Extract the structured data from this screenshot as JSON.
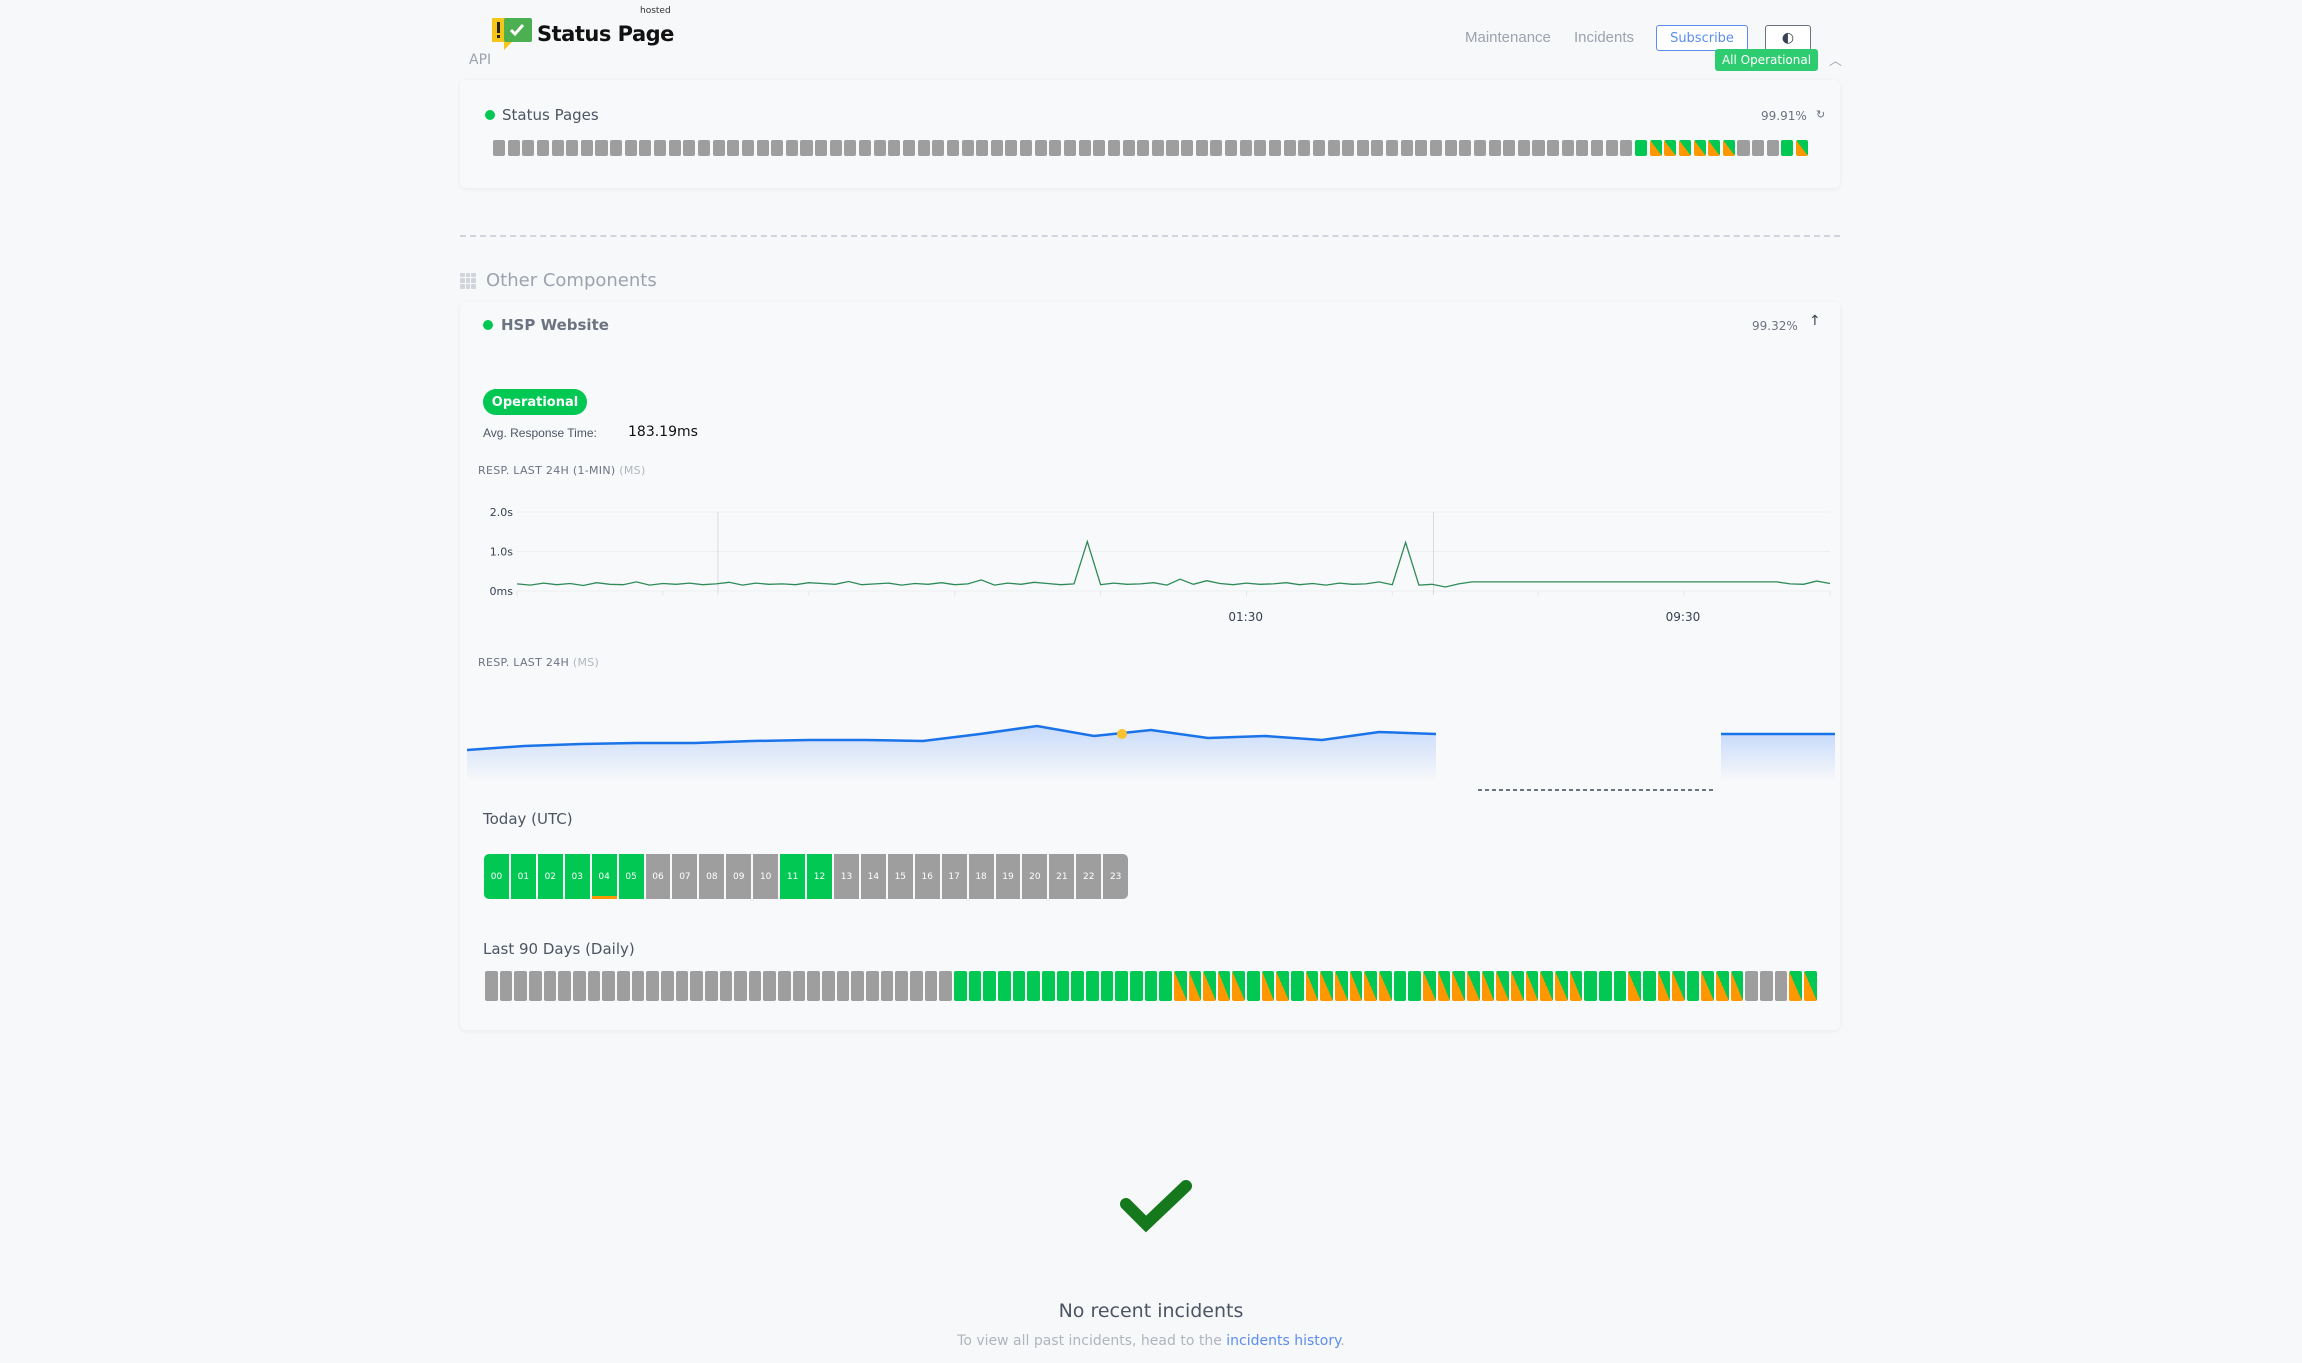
{
  "header": {
    "logo_text": "Status Page",
    "logo_badge": "hosted",
    "api_label": "API",
    "nav": [
      "Maintenance",
      "Incidents"
    ],
    "subscribe_label": "Subscribe",
    "theme_icon": "half-circle-contrast-icon",
    "overall_status": "All Operational",
    "collapse_icon": "chevron-up-icon"
  },
  "colors": {
    "operational": "#00c853",
    "partial": "#ff9800",
    "no_data": "#9e9e9e",
    "accent": "#5b8def"
  },
  "status_pages": {
    "name": "Status Pages",
    "uptime": "99.91%",
    "days": "xxxxxxxxxxxxxxxxxxxxxxxxxxxxxxxxxxxxxxxxxxxxxxxxxxxxxxxxxxxxxxxxxxxxxxxxxxxxxxossssssxxxos"
  },
  "other_components": {
    "heading": "Other Components",
    "component": {
      "name": "HSP Website",
      "uptime": "99.32%",
      "status": "Operational",
      "avg_label": "Avg. Response Time:",
      "avg_value": "183.19ms",
      "chart1_label": "RESP. LAST 24H (1-MIN)",
      "chart1_unit": "(MS)",
      "chart2_label": "RESP. LAST 24H",
      "chart2_unit": "(MS)",
      "today_label": "Today (UTC)",
      "hours": [
        {
          "h": "00",
          "s": "o"
        },
        {
          "h": "01",
          "s": "o"
        },
        {
          "h": "02",
          "s": "o"
        },
        {
          "h": "03",
          "s": "o"
        },
        {
          "h": "04",
          "s": "o",
          "partial": true
        },
        {
          "h": "05",
          "s": "o"
        },
        {
          "h": "06",
          "s": "x"
        },
        {
          "h": "07",
          "s": "x"
        },
        {
          "h": "08",
          "s": "x"
        },
        {
          "h": "09",
          "s": "x"
        },
        {
          "h": "10",
          "s": "x"
        },
        {
          "h": "11",
          "s": "o"
        },
        {
          "h": "12",
          "s": "o"
        },
        {
          "h": "13",
          "s": "x"
        },
        {
          "h": "14",
          "s": "x"
        },
        {
          "h": "15",
          "s": "x"
        },
        {
          "h": "16",
          "s": "x"
        },
        {
          "h": "17",
          "s": "x"
        },
        {
          "h": "18",
          "s": "x"
        },
        {
          "h": "19",
          "s": "x"
        },
        {
          "h": "20",
          "s": "x"
        },
        {
          "h": "21",
          "s": "x"
        },
        {
          "h": "22",
          "s": "x"
        },
        {
          "h": "23",
          "s": "x"
        }
      ],
      "days_label": "Last 90 Days (Daily)",
      "days": "xxxxxxxxxxxxxxxxxxxxxxxxxxxxxxxxooooooooooooooosssssossossssssoosssssssssssooosossosssxxxss"
    }
  },
  "chart_data": [
    {
      "type": "line",
      "title": "RESP. LAST 24H (1-MIN) (MS)",
      "ylim": [
        0,
        2000
      ],
      "yticks": [
        "0ms",
        "1.0s",
        "2.0s"
      ],
      "xticks": [
        "01:30",
        "09:30"
      ],
      "values": [
        180,
        150,
        200,
        160,
        190,
        140,
        210,
        170,
        160,
        230,
        150,
        190,
        170,
        200,
        160,
        180,
        220,
        150,
        200,
        170,
        180,
        160,
        210,
        190,
        170,
        240,
        160,
        180,
        200,
        150,
        190,
        170,
        210,
        160,
        180,
        280,
        150,
        200,
        170,
        220,
        190,
        160,
        180,
        1250,
        160,
        200,
        170,
        180,
        210,
        150,
        300,
        170,
        260,
        190,
        160,
        200,
        170,
        180,
        210,
        160,
        190,
        150,
        200,
        170,
        180,
        230,
        160,
        1230,
        150,
        170,
        100,
        180,
        230,
        230,
        230,
        230,
        230,
        230,
        230,
        230,
        230,
        230,
        230,
        230,
        230,
        230,
        230,
        230,
        230,
        230,
        230,
        230,
        230,
        230,
        230,
        230,
        180,
        170,
        250,
        190
      ],
      "line_color": "#2e8b57"
    },
    {
      "type": "area",
      "title": "RESP. LAST 24H (MS)",
      "values": [
        170,
        174,
        176,
        177,
        177,
        179,
        180,
        180,
        179,
        186,
        194,
        184,
        190,
        182,
        184,
        180,
        188,
        186,
        null,
        null,
        null,
        null,
        186,
        186,
        186
      ],
      "highlight_index": 11,
      "line_color": "#1a73e8"
    }
  ],
  "incidents": {
    "title": "No recent incidents",
    "text": "To view all past incidents, head to the",
    "link": "incidents history",
    "suffix": "."
  }
}
